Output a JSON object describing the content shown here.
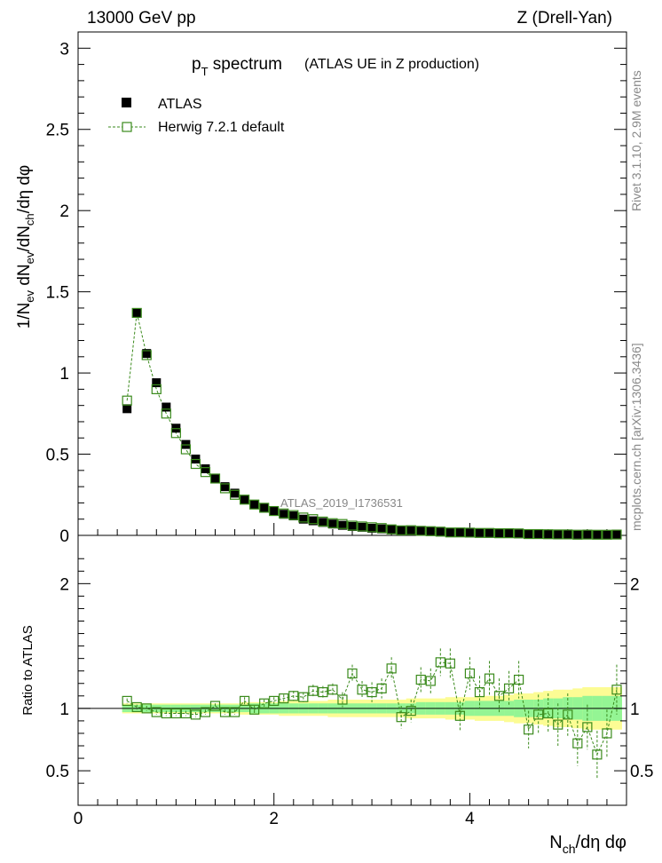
{
  "header": {
    "energy": "13000 GeV pp",
    "process": "Z (Drell-Yan)",
    "title_main": "p",
    "title_sub": "T",
    "title_rest": " spectrum",
    "title_paren": "(ATLAS UE in Z production)"
  },
  "side": {
    "rivet": "Rivet 3.1.10,  2.9M events",
    "mcplots": "mcplots.cern.ch [arXiv:1306.3436]"
  },
  "watermark": "ATLAS_2019_I1736531",
  "colors": {
    "data": "#000000",
    "mc": "#3a8a1c",
    "band_inner": "#94f594",
    "band_outer": "#fcfc94"
  },
  "chart_data": {
    "type": "scatter",
    "xlabel": "N_ch/dη dφ",
    "ylabel": "1/N_ev dN_ev/dN_ch/dη dφ",
    "ratio_ylabel": "Ratio to ATLAS",
    "xlim": [
      0,
      5.6
    ],
    "ylim": [
      0,
      3.1
    ],
    "ratio_ylim": [
      0.33,
      2.28
    ],
    "x_ticks": [
      "0",
      "2",
      "4"
    ],
    "y_ticks": [
      "0",
      "0.5",
      "1",
      "1.5",
      "2",
      "2.5",
      "3"
    ],
    "ratio_ticks": [
      "0.5",
      "1",
      "2"
    ],
    "legend": [
      {
        "name": "ATLAS",
        "marker": "filled-square"
      },
      {
        "name": "Herwig 7.2.1 default",
        "marker": "open-square-dashed"
      }
    ],
    "x": [
      0.5,
      0.6,
      0.7,
      0.8,
      0.9,
      1.0,
      1.1,
      1.2,
      1.3,
      1.4,
      1.5,
      1.6,
      1.7,
      1.8,
      1.9,
      2.0,
      2.1,
      2.2,
      2.3,
      2.4,
      2.5,
      2.6,
      2.7,
      2.8,
      2.9,
      3.0,
      3.1,
      3.2,
      3.3,
      3.4,
      3.5,
      3.6,
      3.7,
      3.8,
      3.9,
      4.0,
      4.1,
      4.2,
      4.3,
      4.4,
      4.5,
      4.6,
      4.7,
      4.8,
      4.9,
      5.0,
      5.1,
      5.2,
      5.3,
      5.4,
      5.5
    ],
    "atlas": [
      0.78,
      1.37,
      1.12,
      0.94,
      0.79,
      0.66,
      0.56,
      0.47,
      0.41,
      0.35,
      0.3,
      0.26,
      0.22,
      0.19,
      0.17,
      0.15,
      0.13,
      0.12,
      0.1,
      0.09,
      0.08,
      0.07,
      0.062,
      0.055,
      0.05,
      0.044,
      0.04,
      0.036,
      0.032,
      0.029,
      0.026,
      0.024,
      0.021,
      0.019,
      0.017,
      0.016,
      0.014,
      0.013,
      0.012,
      0.011,
      0.01,
      0.009,
      0.008,
      0.007,
      0.007,
      0.006,
      0.006,
      0.005,
      0.005,
      0.004,
      0.004
    ],
    "herwig": [
      0.83,
      1.37,
      1.11,
      0.9,
      0.75,
      0.63,
      0.53,
      0.44,
      0.39,
      0.35,
      0.29,
      0.25,
      0.22,
      0.19,
      0.17,
      0.15,
      0.135,
      0.125,
      0.11,
      0.1,
      0.085,
      0.075,
      0.07,
      0.06,
      0.055,
      0.05,
      0.045,
      0.037,
      0.031,
      0.032,
      0.028,
      0.026,
      0.023,
      0.018,
      0.018,
      0.017,
      0.015,
      0.015,
      0.013,
      0.013,
      0.012,
      0.008,
      0.008,
      0.007,
      0.006,
      0.006,
      0.004,
      0.005,
      0.004,
      0.004,
      0.005
    ],
    "ratio": [
      1.06,
      1.01,
      1.0,
      0.97,
      0.96,
      0.96,
      0.96,
      0.95,
      0.97,
      1.02,
      0.97,
      0.97,
      1.06,
      0.99,
      1.04,
      1.06,
      1.08,
      1.1,
      1.09,
      1.14,
      1.13,
      1.15,
      1.07,
      1.28,
      1.15,
      1.13,
      1.16,
      1.32,
      0.93,
      0.98,
      1.23,
      1.22,
      1.37,
      1.36,
      0.94,
      1.28,
      1.13,
      1.24,
      1.1,
      1.16,
      1.23,
      0.83,
      0.95,
      0.96,
      0.87,
      0.95,
      0.72,
      0.85,
      0.63,
      0.8,
      1.15
    ],
    "ratio_err": [
      0.02,
      0.02,
      0.02,
      0.02,
      0.02,
      0.02,
      0.02,
      0.02,
      0.02,
      0.02,
      0.02,
      0.02,
      0.03,
      0.03,
      0.03,
      0.03,
      0.03,
      0.04,
      0.04,
      0.05,
      0.05,
      0.05,
      0.06,
      0.07,
      0.07,
      0.08,
      0.08,
      0.09,
      0.09,
      0.09,
      0.1,
      0.1,
      0.11,
      0.12,
      0.12,
      0.13,
      0.13,
      0.14,
      0.14,
      0.14,
      0.15,
      0.15,
      0.16,
      0.16,
      0.17,
      0.17,
      0.18,
      0.18,
      0.19,
      0.19,
      0.2
    ],
    "band_inner": [
      0.03,
      0.03,
      0.03,
      0.03,
      0.03,
      0.03,
      0.03,
      0.03,
      0.03,
      0.03,
      0.03,
      0.03,
      0.03,
      0.04,
      0.04,
      0.04,
      0.04,
      0.04,
      0.04,
      0.04,
      0.04,
      0.04,
      0.04,
      0.04,
      0.04,
      0.04,
      0.04,
      0.04,
      0.04,
      0.04,
      0.05,
      0.05,
      0.05,
      0.05,
      0.05,
      0.06,
      0.06,
      0.06,
      0.06,
      0.06,
      0.07,
      0.07,
      0.07,
      0.08,
      0.08,
      0.09,
      0.09,
      0.1,
      0.1,
      0.1,
      0.1
    ],
    "band_outer": [
      0.04,
      0.04,
      0.04,
      0.04,
      0.04,
      0.04,
      0.04,
      0.04,
      0.04,
      0.04,
      0.04,
      0.04,
      0.05,
      0.05,
      0.05,
      0.05,
      0.06,
      0.06,
      0.06,
      0.06,
      0.06,
      0.07,
      0.07,
      0.07,
      0.07,
      0.07,
      0.07,
      0.07,
      0.07,
      0.08,
      0.08,
      0.08,
      0.08,
      0.09,
      0.09,
      0.09,
      0.1,
      0.1,
      0.1,
      0.11,
      0.12,
      0.12,
      0.13,
      0.14,
      0.15,
      0.15,
      0.16,
      0.17,
      0.17,
      0.17,
      0.17
    ]
  }
}
